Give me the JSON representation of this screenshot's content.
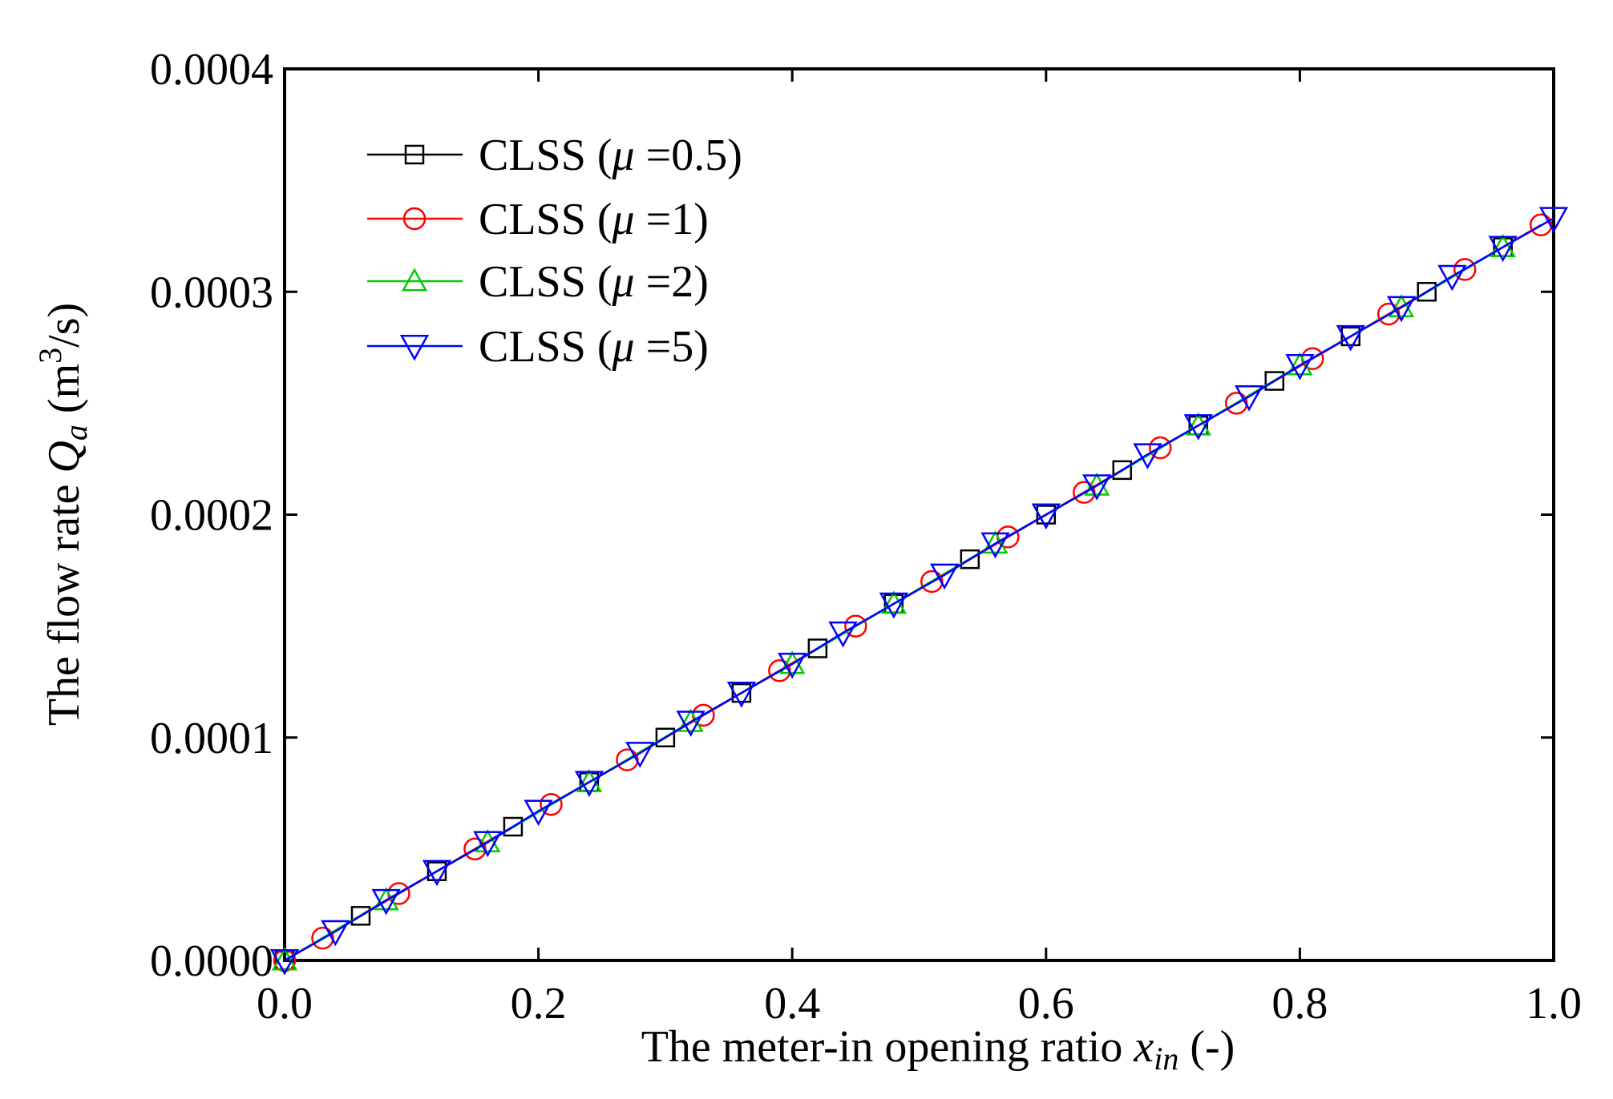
{
  "chart_data": {
    "type": "line",
    "xlabel": "The meter-in opening ratio x_in (-)",
    "ylabel": "The flow rate Q_a (m^3/s)",
    "xlabel_parts": {
      "prefix": "The meter-in opening ratio ",
      "var": "x",
      "sub": "in",
      "suffix": " (-)"
    },
    "ylabel_parts": {
      "prefix": "The flow rate ",
      "var": "Q",
      "sub": "a",
      "units_pre": " (m",
      "sup": "3",
      "units_post": "/s)"
    },
    "xlim": [
      0,
      1.0
    ],
    "ylim": [
      0,
      0.0004
    ],
    "xticks": [
      "0.0",
      "0.2",
      "0.4",
      "0.6",
      "0.8",
      "1.0"
    ],
    "yticks": [
      "0.0000",
      "0.0001",
      "0.0002",
      "0.0003",
      "0.0004"
    ],
    "legend_position": "top-left",
    "series": [
      {
        "name": "CLSS (μ =0.5)",
        "legend_prefix": "CLSS (",
        "legend_mu": "μ",
        "legend_suffix": " =0.5)",
        "color": "#000000",
        "marker": "square",
        "x": [
          0.0,
          0.06,
          0.12,
          0.18,
          0.24,
          0.3,
          0.36,
          0.42,
          0.48,
          0.54,
          0.6,
          0.66,
          0.72,
          0.78,
          0.84,
          0.9,
          0.96
        ],
        "y": [
          0.0,
          2e-05,
          4e-05,
          6e-05,
          8e-05,
          0.0001,
          0.00012,
          0.00014,
          0.00016,
          0.00018,
          0.0002,
          0.00022,
          0.00024,
          0.00026,
          0.00028,
          0.0003,
          0.00032
        ]
      },
      {
        "name": "CLSS (μ =1)",
        "legend_prefix": "CLSS (",
        "legend_mu": "μ",
        "legend_suffix": " =1)",
        "color": "#ff0000",
        "marker": "circle",
        "x": [
          0.0,
          0.03,
          0.09,
          0.15,
          0.21,
          0.27,
          0.33,
          0.39,
          0.45,
          0.51,
          0.57,
          0.63,
          0.69,
          0.75,
          0.81,
          0.87,
          0.93,
          0.99
        ],
        "y": [
          0.0,
          1e-05,
          3e-05,
          5e-05,
          7e-05,
          9e-05,
          0.00011,
          0.00013,
          0.00015,
          0.00017,
          0.00019,
          0.00021,
          0.00023,
          0.00025,
          0.00027,
          0.00029,
          0.00031,
          0.00033
        ]
      },
      {
        "name": "CLSS (μ =2)",
        "legend_prefix": "CLSS (",
        "legend_mu": "μ",
        "legend_suffix": " =2)",
        "color": "#00cc00",
        "marker": "triangle-up",
        "x": [
          0.0,
          0.08,
          0.16,
          0.24,
          0.32,
          0.4,
          0.48,
          0.56,
          0.64,
          0.72,
          0.8,
          0.88,
          0.96
        ],
        "y": [
          0.0,
          2.7e-05,
          5.3e-05,
          8e-05,
          0.000107,
          0.000133,
          0.00016,
          0.000187,
          0.000213,
          0.00024,
          0.000267,
          0.000293,
          0.00032
        ]
      },
      {
        "name": "CLSS (μ =5)",
        "legend_prefix": "CLSS (",
        "legend_mu": "μ",
        "legend_suffix": " =5)",
        "color": "#0000ff",
        "marker": "triangle-down",
        "x": [
          0.0,
          0.04,
          0.08,
          0.12,
          0.16,
          0.2,
          0.24,
          0.28,
          0.32,
          0.36,
          0.4,
          0.44,
          0.48,
          0.52,
          0.56,
          0.6,
          0.64,
          0.68,
          0.72,
          0.76,
          0.8,
          0.84,
          0.88,
          0.92,
          0.96,
          1.0
        ],
        "y": [
          0.0,
          1.3e-05,
          2.7e-05,
          4e-05,
          5.3e-05,
          6.7e-05,
          8e-05,
          9.3e-05,
          0.000107,
          0.00012,
          0.000133,
          0.000147,
          0.00016,
          0.000173,
          0.000187,
          0.0002,
          0.000213,
          0.000227,
          0.00024,
          0.000253,
          0.000267,
          0.00028,
          0.000293,
          0.000307,
          0.00032,
          0.000333
        ]
      }
    ]
  }
}
